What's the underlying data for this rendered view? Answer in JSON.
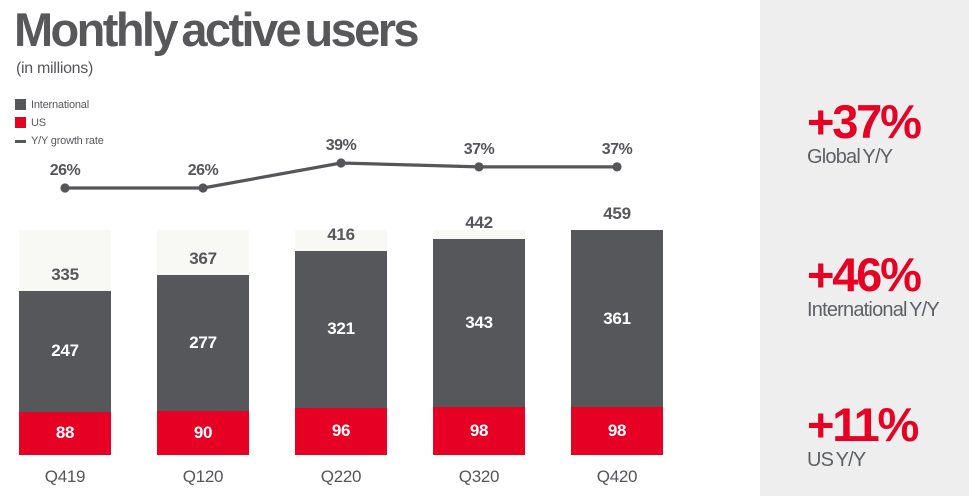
{
  "title": "Monthly active users",
  "subtitle": "(in millions)",
  "legend": [
    {
      "label": "International",
      "swatch": "square",
      "color": "#56575B"
    },
    {
      "label": "US",
      "swatch": "square",
      "color": "#E60023"
    },
    {
      "label": "Y/Y growth rate",
      "swatch": "line",
      "color": "#56575B"
    }
  ],
  "chart_data": {
    "type": "bar",
    "stacked": true,
    "title": "Monthly active users",
    "subtitle": "(in millions)",
    "unit": "millions of users",
    "grid": false,
    "legend_position": "top-left",
    "categories": [
      "Q419",
      "Q120",
      "Q220",
      "Q320",
      "Q420"
    ],
    "series": [
      {
        "name": "US",
        "color": "#E60023",
        "values": [
          88,
          90,
          96,
          98,
          98
        ]
      },
      {
        "name": "International",
        "color": "#56575B",
        "values": [
          247,
          277,
          321,
          343,
          361
        ]
      }
    ],
    "totals": [
      335,
      367,
      416,
      442,
      459
    ],
    "line_series": {
      "name": "Y/Y growth rate",
      "unit": "%",
      "color": "#55565A",
      "values": [
        26,
        26,
        39,
        37,
        37
      ],
      "labels": [
        "26%",
        "26%",
        "39%",
        "37%",
        "37%"
      ]
    }
  },
  "stats": [
    {
      "value": "+37%",
      "label": "Global Y/Y"
    },
    {
      "value": "+46%",
      "label": "International Y/Y"
    },
    {
      "value": "+11%",
      "label": "US Y/Y"
    }
  ],
  "colors": {
    "international": "#56575B",
    "us": "#E60023",
    "stats_panel_bg": "#EEEEEE",
    "column_bg": "#F8F8F4",
    "text_dark": "#56575B",
    "stat_value": "#E60023",
    "stat_label": "#5D6166"
  }
}
